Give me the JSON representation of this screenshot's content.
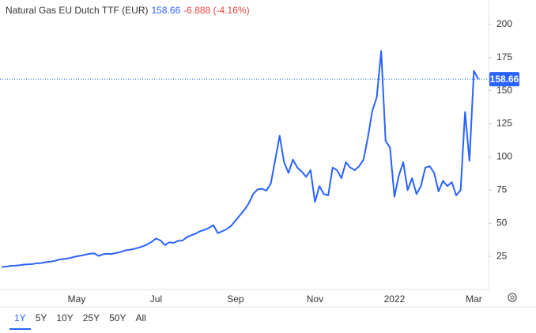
{
  "chart_data": {
    "type": "line",
    "title": "Natural Gas EU Dutch TTF (EUR)",
    "change_label": "-6.888 (-4.16%)",
    "color": "#2962ff",
    "categories": [
      null,
      null,
      null,
      null,
      null,
      null,
      null,
      null,
      null,
      null,
      null,
      null,
      null,
      null,
      null,
      null,
      null,
      "May",
      null,
      null,
      null,
      null,
      null,
      null,
      null,
      null,
      null,
      null,
      null,
      null,
      null,
      null,
      null,
      null,
      null,
      "Jul",
      null,
      null,
      null,
      null,
      null,
      null,
      null,
      null,
      null,
      null,
      null,
      null,
      null,
      null,
      null,
      null,
      null,
      "Sep",
      null,
      null,
      null,
      null,
      null,
      null,
      null,
      null,
      null,
      null,
      null,
      null,
      null,
      null,
      null,
      null,
      null,
      "Nov",
      null,
      null,
      null,
      null,
      null,
      null,
      null,
      null,
      null,
      null,
      null,
      null,
      null,
      null,
      null,
      null,
      null,
      "2022",
      null,
      null,
      null,
      null,
      null,
      null,
      null,
      null,
      null,
      null,
      null,
      null,
      null,
      null,
      null,
      null,
      null,
      "Mar",
      null
    ],
    "values": [
      17,
      17.2,
      17.8,
      18,
      18.3,
      18.8,
      19,
      19.2,
      19.8,
      20,
      20.6,
      21,
      21.6,
      22.5,
      23,
      23.4,
      24.2,
      25,
      25.6,
      26.3,
      27,
      27.2,
      25.3,
      26.6,
      27,
      26.8,
      27.6,
      28.3,
      29.5,
      30,
      30.6,
      31.5,
      32.6,
      34,
      36,
      38.5,
      37,
      33.5,
      35.6,
      35.2,
      36.7,
      37,
      39.5,
      41,
      42.2,
      44,
      45,
      46.5,
      48.5,
      42.5,
      44,
      45.5,
      48,
      52,
      56,
      60,
      65,
      72,
      75.5,
      76,
      74.5,
      80,
      98,
      116,
      96,
      88,
      98,
      92,
      89,
      85,
      90,
      66,
      78,
      72,
      71,
      92,
      90,
      84,
      96,
      92,
      90,
      93,
      98,
      115,
      135,
      145,
      180,
      112,
      107,
      70,
      86,
      96,
      75,
      84,
      72,
      78,
      92,
      93,
      88,
      74,
      82,
      78,
      81,
      71,
      75,
      134,
      97,
      165,
      158.66
    ],
    "ylim": [
      0,
      218.4
    ],
    "yticks": [
      25,
      50,
      75,
      100,
      125,
      150,
      175,
      200
    ],
    "range_buttons": [
      "1Y",
      "5Y",
      "10Y",
      "25Y",
      "50Y",
      "All"
    ],
    "selected_range_index": 0
  }
}
